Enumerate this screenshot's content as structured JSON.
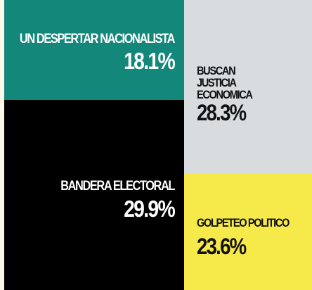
{
  "chart_data": {
    "type": "treemap",
    "unit": "%",
    "items": [
      {
        "label": "UN DESPERTAR NACIONALISTA",
        "value": 18.1,
        "value_text": "18.1%",
        "color": "#14877b",
        "text_color": "#ffffff"
      },
      {
        "label": "BUSCAN JUSTICIA ECONOMICA",
        "value": 28.3,
        "value_text": "28.3%",
        "color": "#d8dcdf",
        "text_color": "#111111"
      },
      {
        "label": "BANDERA ELECTORAL",
        "value": 29.9,
        "value_text": "29.9%",
        "color": "#000000",
        "text_color": "#ffffff"
      },
      {
        "label": "GOLPETEO POLITICO",
        "value": 23.6,
        "value_text": "23.6%",
        "color": "#f6e94a",
        "text_color": "#111111"
      }
    ]
  }
}
